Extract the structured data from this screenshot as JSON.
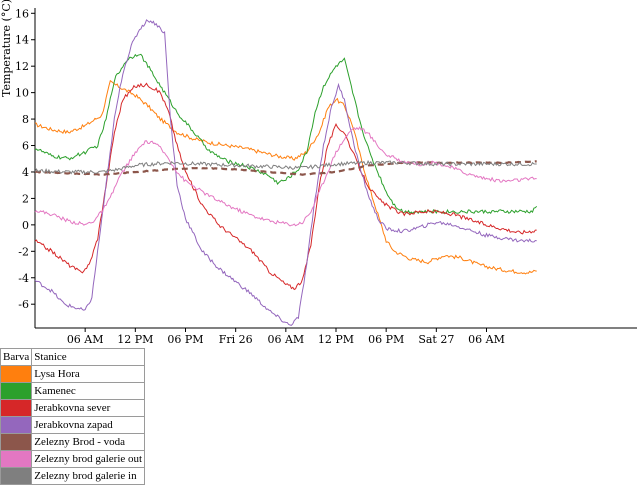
{
  "chart_data": {
    "type": "line",
    "ylabel": "Temperature (°C)",
    "ylim": [
      -7.8,
      16.4
    ],
    "yticks": [
      "-6",
      "-4",
      "-2",
      "0",
      "2",
      "4",
      "6",
      "8",
      "10",
      "12",
      "14",
      "16"
    ],
    "xrange_hours": [
      0,
      72
    ],
    "xticks": [
      {
        "hour": 6,
        "label": "06 AM"
      },
      {
        "hour": 12,
        "label": "12 PM"
      },
      {
        "hour": 18,
        "label": "06 PM"
      },
      {
        "hour": 24,
        "label": "Fri 26"
      },
      {
        "hour": 30,
        "label": "06 AM"
      },
      {
        "hour": 36,
        "label": "12 PM"
      },
      {
        "hour": 42,
        "label": "06 PM"
      },
      {
        "hour": 48,
        "label": "Sat 27"
      },
      {
        "hour": 54,
        "label": "06 AM"
      }
    ],
    "series": [
      {
        "name": "Lysa Hora",
        "color": "#ff7f0e",
        "points": [
          [
            0,
            7.6
          ],
          [
            2,
            7.2
          ],
          [
            4,
            7.0
          ],
          [
            6,
            7.5
          ],
          [
            8,
            8.3
          ],
          [
            9,
            10.8
          ],
          [
            10.5,
            10.3
          ],
          [
            12,
            9.8
          ],
          [
            13.5,
            9.0
          ],
          [
            15,
            8.0
          ],
          [
            17,
            7.0
          ],
          [
            19,
            6.5
          ],
          [
            21,
            6.2
          ],
          [
            23,
            6.0
          ],
          [
            25,
            5.8
          ],
          [
            27,
            5.5
          ],
          [
            29,
            5.2
          ],
          [
            31,
            5.0
          ],
          [
            32.5,
            5.5
          ],
          [
            34,
            7.0
          ],
          [
            35,
            8.8
          ],
          [
            36,
            9.5
          ],
          [
            37,
            9.0
          ],
          [
            38,
            7.5
          ],
          [
            39,
            5.0
          ],
          [
            40,
            2.8
          ],
          [
            41,
            0.8
          ],
          [
            42,
            -1.2
          ],
          [
            43,
            -2.0
          ],
          [
            45,
            -2.6
          ],
          [
            47,
            -2.8
          ],
          [
            49,
            -2.3
          ],
          [
            51,
            -2.5
          ],
          [
            53,
            -3.0
          ],
          [
            55,
            -3.3
          ],
          [
            57,
            -3.5
          ],
          [
            59,
            -3.6
          ],
          [
            60,
            -3.5
          ]
        ]
      },
      {
        "name": "Kamenec",
        "color": "#2ca02c",
        "points": [
          [
            0,
            5.8
          ],
          [
            2,
            5.2
          ],
          [
            4,
            5.0
          ],
          [
            6,
            5.5
          ],
          [
            7.5,
            6.0
          ],
          [
            8.5,
            8.0
          ],
          [
            9.5,
            11.0
          ],
          [
            11,
            12.5
          ],
          [
            12.5,
            13.0
          ],
          [
            14,
            11.5
          ],
          [
            15.5,
            10.0
          ],
          [
            17,
            8.5
          ],
          [
            19,
            7.0
          ],
          [
            21,
            5.5
          ],
          [
            23,
            4.8
          ],
          [
            25,
            4.5
          ],
          [
            27,
            4.0
          ],
          [
            28,
            3.7
          ],
          [
            29,
            3.2
          ],
          [
            30,
            3.4
          ],
          [
            31.5,
            4.2
          ],
          [
            32.5,
            5.5
          ],
          [
            33.5,
            8.5
          ],
          [
            34.5,
            10.5
          ],
          [
            36,
            12.0
          ],
          [
            37,
            12.5
          ],
          [
            38,
            10.0
          ],
          [
            39,
            7.5
          ],
          [
            40,
            5.5
          ],
          [
            41,
            4.0
          ],
          [
            42,
            2.5
          ],
          [
            43,
            1.5
          ],
          [
            44,
            1.0
          ],
          [
            46,
            1.0
          ],
          [
            48,
            1.0
          ],
          [
            50,
            1.0
          ],
          [
            52,
            1.0
          ],
          [
            54,
            1.0
          ],
          [
            56,
            1.0
          ],
          [
            58,
            1.0
          ],
          [
            59.5,
            1.0
          ],
          [
            60,
            1.4
          ]
        ]
      },
      {
        "name": "Jerabkovna sever",
        "color": "#d62728",
        "points": [
          [
            0,
            -1.2
          ],
          [
            2,
            -2.0
          ],
          [
            4,
            -3.0
          ],
          [
            5.5,
            -3.6
          ],
          [
            6.5,
            -3.0
          ],
          [
            7.5,
            -1.0
          ],
          [
            8.5,
            3.0
          ],
          [
            9.5,
            7.0
          ],
          [
            10.5,
            9.5
          ],
          [
            12,
            10.5
          ],
          [
            13.5,
            10.6
          ],
          [
            15,
            10.0
          ],
          [
            16,
            8.5
          ],
          [
            17,
            6.0
          ],
          [
            18,
            4.0
          ],
          [
            20,
            1.5
          ],
          [
            22,
            0.0
          ],
          [
            24,
            -1.0
          ],
          [
            26,
            -2.0
          ],
          [
            28,
            -3.5
          ],
          [
            30,
            -4.5
          ],
          [
            31,
            -4.8
          ],
          [
            32,
            -4.2
          ],
          [
            33,
            -1.5
          ],
          [
            34,
            3.0
          ],
          [
            35,
            6.0
          ],
          [
            36,
            7.5
          ],
          [
            37,
            7.0
          ],
          [
            38,
            5.5
          ],
          [
            39,
            4.0
          ],
          [
            40,
            2.8
          ],
          [
            41,
            2.0
          ],
          [
            42,
            1.5
          ],
          [
            44,
            0.8
          ],
          [
            46,
            1.0
          ],
          [
            48,
            1.0
          ],
          [
            50,
            0.8
          ],
          [
            52,
            0.4
          ],
          [
            54,
            0.0
          ],
          [
            56,
            -0.3
          ],
          [
            58,
            -0.6
          ],
          [
            60,
            -0.4
          ]
        ]
      },
      {
        "name": "Jerabkovna zapad",
        "color": "#9467bd",
        "points": [
          [
            0,
            -4.2
          ],
          [
            2,
            -5.0
          ],
          [
            3.5,
            -6.0
          ],
          [
            5,
            -6.3
          ],
          [
            6,
            -6.5
          ],
          [
            6.8,
            -5.5
          ],
          [
            7.5,
            -2.0
          ],
          [
            8.5,
            3.0
          ],
          [
            9.5,
            8.0
          ],
          [
            10.5,
            11.5
          ],
          [
            11.5,
            13.5
          ],
          [
            12.5,
            14.8
          ],
          [
            13.5,
            15.5
          ],
          [
            14.5,
            15.2
          ],
          [
            15.5,
            14.5
          ],
          [
            16.2,
            8.0
          ],
          [
            17,
            3.0
          ],
          [
            18,
            0.5
          ],
          [
            20,
            -2.0
          ],
          [
            22,
            -3.3
          ],
          [
            24,
            -4.3
          ],
          [
            26,
            -5.3
          ],
          [
            28,
            -6.5
          ],
          [
            29.5,
            -7.2
          ],
          [
            30.5,
            -7.6
          ],
          [
            31.5,
            -7.0
          ],
          [
            32.5,
            -3.0
          ],
          [
            33.5,
            2.0
          ],
          [
            34.5,
            6.0
          ],
          [
            35.5,
            9.0
          ],
          [
            36.3,
            10.5
          ],
          [
            37,
            9.5
          ],
          [
            38,
            6.5
          ],
          [
            39,
            4.0
          ],
          [
            40,
            2.0
          ],
          [
            41,
            0.5
          ],
          [
            42,
            -0.3
          ],
          [
            44,
            -0.5
          ],
          [
            46,
            -0.2
          ],
          [
            48,
            0.2
          ],
          [
            50,
            0.0
          ],
          [
            52,
            -0.4
          ],
          [
            54,
            -0.8
          ],
          [
            56,
            -1.0
          ],
          [
            58,
            -1.2
          ],
          [
            60,
            -1.2
          ]
        ]
      },
      {
        "name": "Zelezny Brod - voda",
        "color": "#8c564b",
        "dashed": true,
        "points": [
          [
            0,
            4.0
          ],
          [
            4,
            3.9
          ],
          [
            8,
            3.8
          ],
          [
            12,
            4.0
          ],
          [
            16,
            4.2
          ],
          [
            20,
            4.3
          ],
          [
            24,
            4.2
          ],
          [
            28,
            4.0
          ],
          [
            32,
            3.8
          ],
          [
            36,
            4.0
          ],
          [
            40,
            4.5
          ],
          [
            44,
            4.7
          ],
          [
            48,
            4.7
          ],
          [
            52,
            4.7
          ],
          [
            56,
            4.7
          ],
          [
            60,
            4.8
          ]
        ]
      },
      {
        "name": "Zelezny brod galerie out",
        "color": "#e377c2",
        "points": [
          [
            0,
            1.1
          ],
          [
            2,
            0.8
          ],
          [
            4,
            0.3
          ],
          [
            6,
            0.0
          ],
          [
            7,
            0.3
          ],
          [
            8,
            1.0
          ],
          [
            9,
            2.0
          ],
          [
            10,
            3.5
          ],
          [
            11.5,
            5.0
          ],
          [
            13,
            6.2
          ],
          [
            14,
            6.3
          ],
          [
            15,
            5.8
          ],
          [
            16,
            5.0
          ],
          [
            17,
            4.0
          ],
          [
            18,
            3.3
          ],
          [
            20,
            2.5
          ],
          [
            22,
            1.8
          ],
          [
            24,
            1.2
          ],
          [
            26,
            0.7
          ],
          [
            28,
            0.3
          ],
          [
            30,
            0.1
          ],
          [
            31,
            0.0
          ],
          [
            32,
            0.2
          ],
          [
            33,
            1.0
          ],
          [
            34,
            2.5
          ],
          [
            35,
            4.0
          ],
          [
            36,
            5.5
          ],
          [
            37,
            6.5
          ],
          [
            38,
            7.3
          ],
          [
            39,
            7.3
          ],
          [
            40,
            6.8
          ],
          [
            41,
            6.0
          ],
          [
            42,
            5.3
          ],
          [
            44,
            4.8
          ],
          [
            46,
            4.6
          ],
          [
            48,
            4.7
          ],
          [
            50,
            4.3
          ],
          [
            52,
            3.8
          ],
          [
            54,
            3.5
          ],
          [
            56,
            3.3
          ],
          [
            58,
            3.4
          ],
          [
            60,
            3.5
          ]
        ]
      },
      {
        "name": "Zelezny brod galerie in",
        "color": "#7f7f7f",
        "points": [
          [
            0,
            4.1
          ],
          [
            4,
            4.0
          ],
          [
            8,
            4.0
          ],
          [
            10,
            4.2
          ],
          [
            12,
            4.5
          ],
          [
            14,
            4.6
          ],
          [
            16,
            4.7
          ],
          [
            20,
            4.6
          ],
          [
            24,
            4.5
          ],
          [
            28,
            4.4
          ],
          [
            32,
            4.3
          ],
          [
            36,
            4.6
          ],
          [
            40,
            4.7
          ],
          [
            44,
            4.7
          ],
          [
            48,
            4.6
          ],
          [
            52,
            4.6
          ],
          [
            56,
            4.6
          ],
          [
            60,
            4.6
          ]
        ]
      }
    ]
  },
  "legend": {
    "header_color": "Barva",
    "header_station": "Stanice"
  }
}
